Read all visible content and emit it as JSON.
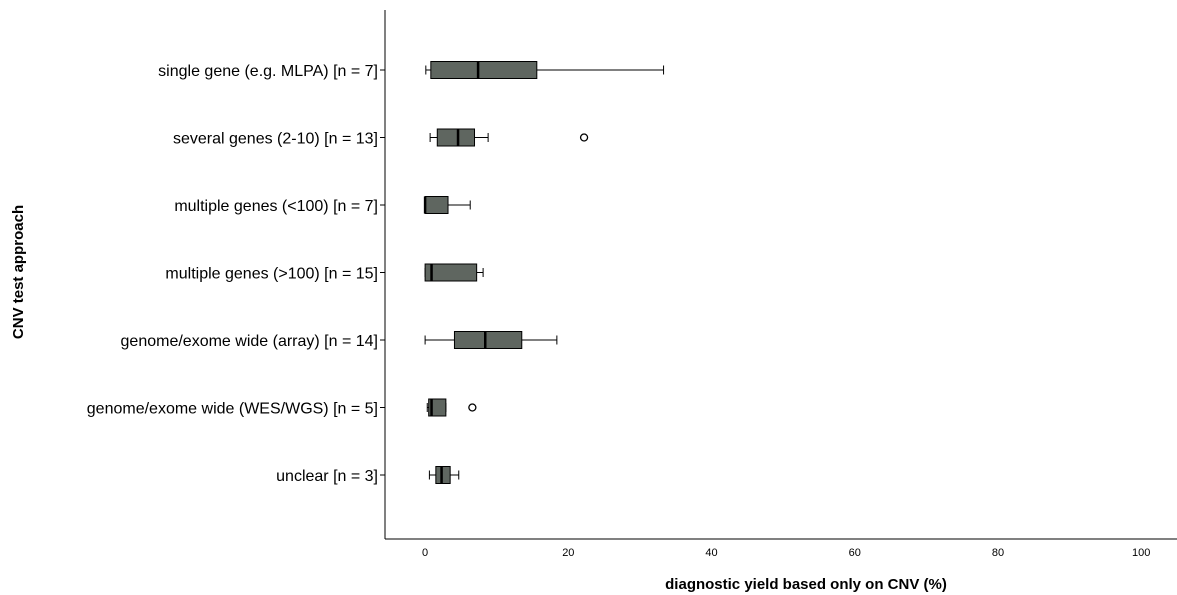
{
  "chart_data": {
    "type": "boxplot",
    "orientation": "horizontal",
    "title": "",
    "xlabel": "diagnostic yield based only on CNV (%)",
    "ylabel": "CNV test approach",
    "xlim": [
      -5.6,
      105
    ],
    "xticks": [
      0,
      20,
      40,
      60,
      80,
      100
    ],
    "grid": false,
    "box_color": "#5f6660",
    "categories": [
      {
        "label": "single gene (e.g. MLPA)  [n = 7]",
        "whisker_low": 0.1,
        "q1": 0.8,
        "median": 7.4,
        "q3": 15.6,
        "whisker_high": 33.3,
        "outliers": []
      },
      {
        "label": "several genes (2-10)  [n = 13]",
        "whisker_low": 0.7,
        "q1": 1.7,
        "median": 4.6,
        "q3": 6.9,
        "whisker_high": 8.8,
        "outliers": [
          22.2
        ]
      },
      {
        "label": "multiple genes (<100)  [n = 7]",
        "whisker_low": 0.0,
        "q1": 0.0,
        "median": 0.0,
        "q3": 3.2,
        "whisker_high": 6.3,
        "outliers": []
      },
      {
        "label": "multiple genes (>100)  [n = 15]",
        "whisker_low": 0.0,
        "q1": 0.0,
        "median": 0.9,
        "q3": 7.2,
        "whisker_high": 8.1,
        "outliers": []
      },
      {
        "label": "genome/exome wide (array)  [n = 14]",
        "whisker_low": 0.0,
        "q1": 4.1,
        "median": 8.4,
        "q3": 13.5,
        "whisker_high": 18.4,
        "outliers": []
      },
      {
        "label": "genome/exome wide (WES/WGS)  [n = 5]",
        "whisker_low": 0.3,
        "q1": 0.5,
        "median": 0.9,
        "q3": 2.9,
        "whisker_high": 2.9,
        "outliers": [
          6.6
        ]
      },
      {
        "label": "unclear  [n = 3]",
        "whisker_low": 0.6,
        "q1": 1.5,
        "median": 2.3,
        "q3": 3.5,
        "whisker_high": 4.7,
        "outliers": []
      }
    ]
  }
}
